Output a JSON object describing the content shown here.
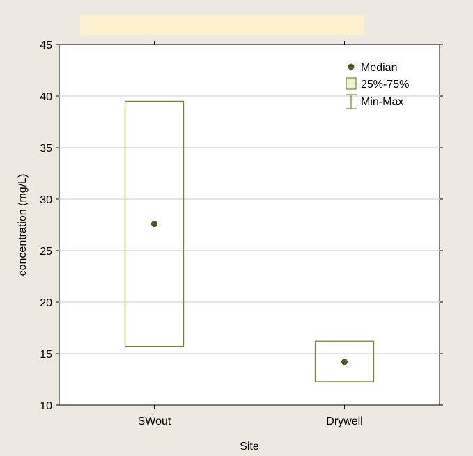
{
  "chart_data": {
    "type": "box",
    "title": "",
    "xlabel": "Site",
    "ylabel": "concentration (mg/L)",
    "ylim": [
      10,
      45
    ],
    "yticks": [
      10,
      15,
      20,
      25,
      30,
      35,
      40,
      45
    ],
    "grid": true,
    "legend_position": "top-right",
    "legend": {
      "median": "Median",
      "iqr": "25%-75%",
      "range": "Min-Max"
    },
    "categories": [
      "SWout",
      "Drywell"
    ],
    "boxes": [
      {
        "name": "SWout",
        "median": 27.6,
        "q1": 15.7,
        "q3": 39.5
      },
      {
        "name": "Drywell",
        "median": 14.2,
        "q1": 12.3,
        "q3": 16.2
      }
    ],
    "colors": {
      "background": "#ede9e0",
      "plot": "#ffffff",
      "title_band": "#fdf0cc",
      "series": "#6b8e23",
      "median": "#4a5a23",
      "grid": "#c8c8c8"
    }
  }
}
